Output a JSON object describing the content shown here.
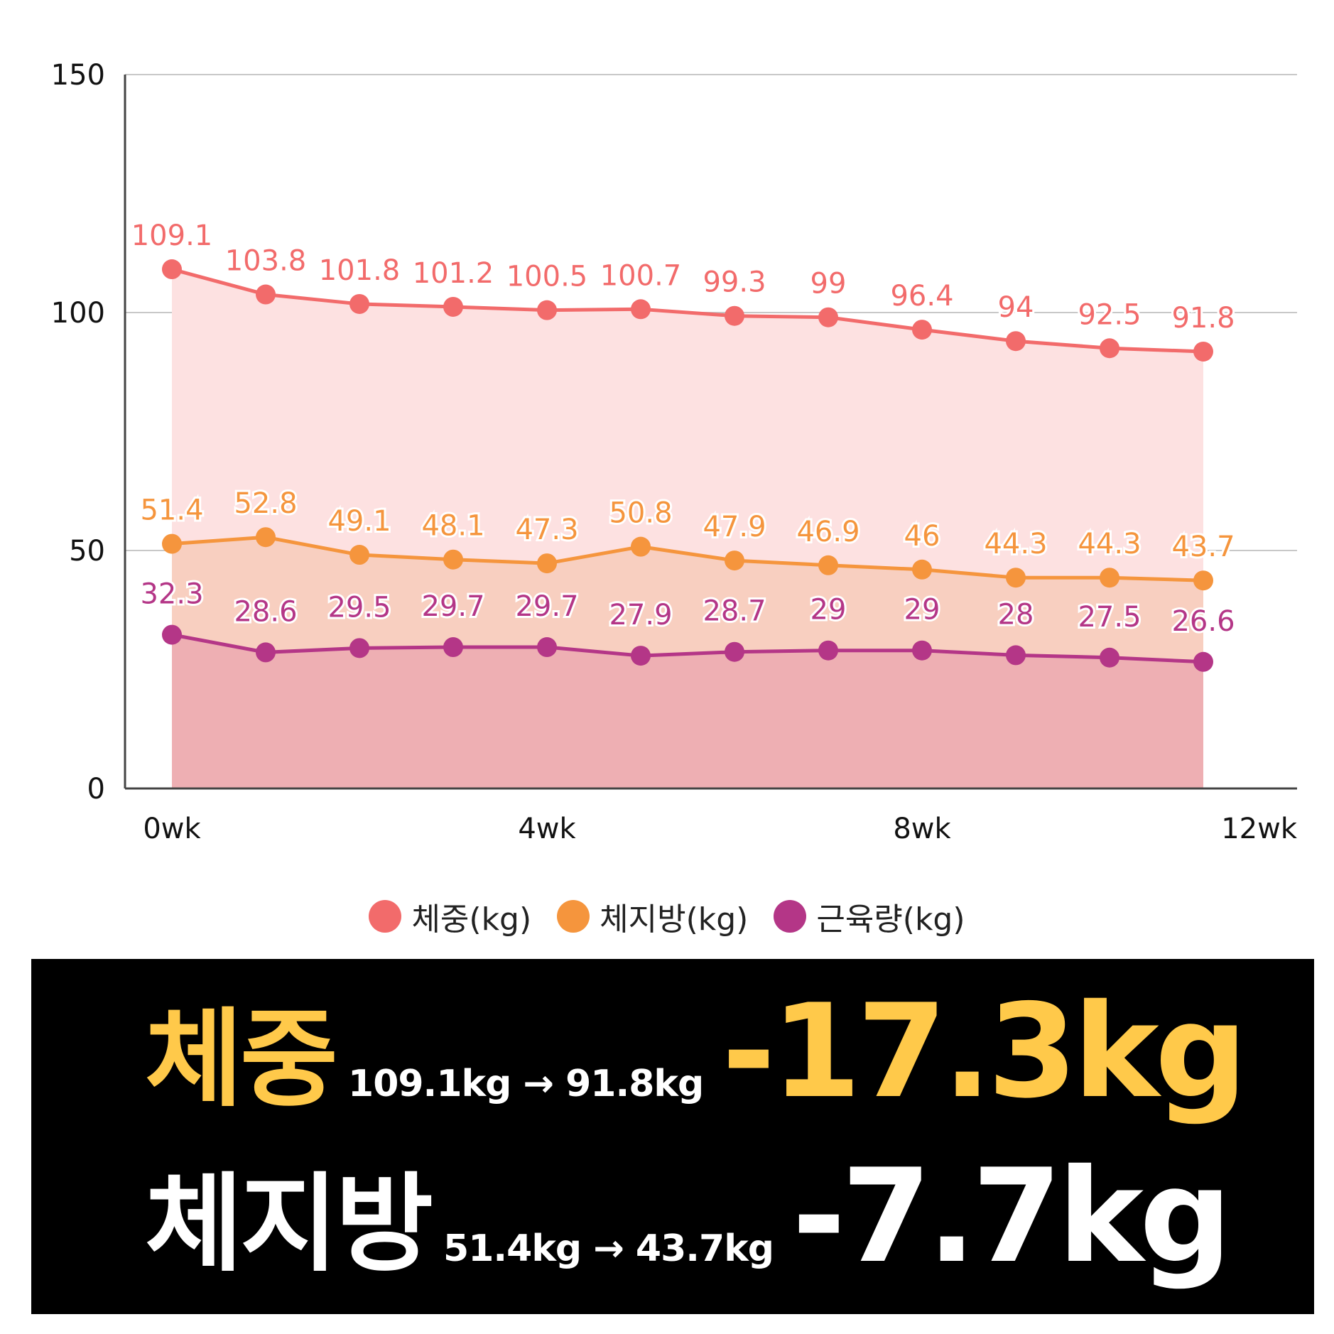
{
  "chart_data": {
    "type": "area",
    "x": [
      0,
      1,
      2,
      3,
      4,
      5,
      6,
      7,
      8,
      9,
      10,
      11
    ],
    "x_ticks": [
      {
        "value": 0,
        "label": "0wk"
      },
      {
        "value": 4,
        "label": "4wk"
      },
      {
        "value": 8,
        "label": "8wk"
      },
      {
        "value": 12,
        "label": "12wk"
      }
    ],
    "xlim": [
      -0.5,
      12
    ],
    "ylim": [
      0,
      150
    ],
    "y_ticks": [
      0,
      50,
      100,
      150
    ],
    "grid": true,
    "legend_position": "bottom",
    "series": [
      {
        "name": "체중(kg)",
        "color": "#f26b6b",
        "fill": "#fde1e1",
        "values": [
          109.1,
          103.8,
          101.8,
          101.2,
          100.5,
          100.7,
          99.3,
          99,
          96.4,
          94,
          92.5,
          91.8
        ],
        "labels": [
          "109.1",
          "103.8",
          "101.8",
          "101.2",
          "100.5",
          "100.7",
          "99.3",
          "99",
          "96.4",
          "94",
          "92.5",
          "91.8"
        ]
      },
      {
        "name": "체지방(kg)",
        "color": "#f5953d",
        "fill": "#f8cfc0",
        "values": [
          51.4,
          52.8,
          49.1,
          48.1,
          47.3,
          50.8,
          47.9,
          46.9,
          46,
          44.3,
          44.3,
          43.7
        ],
        "labels": [
          "51.4",
          "52.8",
          "49.1",
          "48.1",
          "47.3",
          "50.8",
          "47.9",
          "46.9",
          "46",
          "44.3",
          "44.3",
          "43.7"
        ]
      },
      {
        "name": "근육량(kg)",
        "color": "#b43687",
        "fill": "#eeafb3",
        "values": [
          32.3,
          28.6,
          29.5,
          29.7,
          29.7,
          27.9,
          28.7,
          29,
          29,
          28,
          27.5,
          26.6
        ],
        "labels": [
          "32.3",
          "28.6",
          "29.5",
          "29.7",
          "29.7",
          "27.9",
          "28.7",
          "29",
          "29",
          "28",
          "27.5",
          "26.6"
        ]
      }
    ]
  },
  "legend": [
    {
      "label": "체중(kg)",
      "color": "#f26b6b"
    },
    {
      "label": "체지방(kg)",
      "color": "#f5953d"
    },
    {
      "label": "근육량(kg)",
      "color": "#b43687"
    }
  ],
  "summary": {
    "row1": {
      "label": "체중",
      "range_from": "109.1kg",
      "arrow": "→",
      "range_to": "91.8kg",
      "delta": "-17.3kg",
      "color": "#ffc94a"
    },
    "row2": {
      "label": "체지방",
      "range_from": "51.4kg",
      "arrow": "→",
      "range_to": "43.7kg",
      "delta": "-7.7kg",
      "color": "#ffffff"
    }
  }
}
